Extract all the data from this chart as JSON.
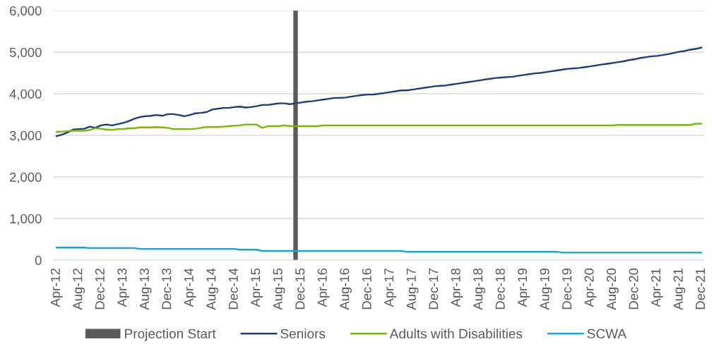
{
  "chart_data": {
    "type": "line",
    "categories": [
      "Apr-12",
      null,
      null,
      null,
      "Aug-12",
      null,
      null,
      null,
      "Dec-12",
      null,
      null,
      null,
      "Apr-13",
      null,
      null,
      null,
      "Aug-13",
      null,
      null,
      null,
      "Dec-13",
      null,
      null,
      null,
      "Apr-14",
      null,
      null,
      null,
      "Aug-14",
      null,
      null,
      null,
      "Dec-14",
      null,
      null,
      null,
      "Apr-15",
      null,
      null,
      null,
      "Aug-15",
      null,
      null,
      null,
      "Dec-15",
      null,
      null,
      null,
      "Apr-16",
      null,
      null,
      null,
      "Aug-16",
      null,
      null,
      null,
      "Dec-16",
      null,
      null,
      null,
      "Apr-17",
      null,
      null,
      null,
      "Aug-17",
      null,
      null,
      null,
      "Dec-17",
      null,
      null,
      null,
      "Apr-18",
      null,
      null,
      null,
      "Aug-18",
      null,
      null,
      null,
      "Dec-18",
      null,
      null,
      null,
      "Apr-19",
      null,
      null,
      null,
      "Aug-19",
      null,
      null,
      null,
      "Dec-19",
      null,
      null,
      null,
      "Apr-20",
      null,
      null,
      null,
      "Aug-20",
      null,
      null,
      null,
      "Dec-20",
      null,
      null,
      null,
      "Apr-21",
      null,
      null,
      null,
      "Aug-21",
      null,
      null,
      null,
      "Dec-21"
    ],
    "series": [
      {
        "name": "Projection Start",
        "type": "bar",
        "color": "#595959",
        "values": [
          null,
          null,
          null,
          null,
          null,
          null,
          null,
          null,
          null,
          null,
          null,
          null,
          null,
          null,
          null,
          null,
          null,
          null,
          null,
          null,
          null,
          null,
          null,
          null,
          null,
          null,
          null,
          null,
          null,
          null,
          null,
          null,
          null,
          null,
          null,
          null,
          null,
          null,
          null,
          null,
          null,
          null,
          null,
          6000,
          null,
          null,
          null,
          null,
          null,
          null,
          null,
          null,
          null,
          null,
          null,
          null,
          null,
          null,
          null,
          null,
          null,
          null,
          null,
          null,
          null,
          null,
          null,
          null,
          null,
          null,
          null,
          null,
          null,
          null,
          null,
          null,
          null,
          null,
          null,
          null,
          null,
          null,
          null,
          null,
          null,
          null,
          null,
          null,
          null,
          null,
          null,
          null,
          null,
          null,
          null,
          null,
          null,
          null,
          null,
          null,
          null,
          null,
          null,
          null,
          null,
          null,
          null,
          null,
          null,
          null,
          null,
          null,
          null,
          null,
          null,
          null,
          null
        ]
      },
      {
        "name": "Seniors",
        "color": "#1f3b7f",
        "values": [
          2980,
          3020,
          3070,
          3140,
          3150,
          3160,
          3210,
          3180,
          3240,
          3260,
          3240,
          3270,
          3300,
          3340,
          3400,
          3440,
          3460,
          3470,
          3490,
          3470,
          3510,
          3510,
          3490,
          3460,
          3490,
          3530,
          3540,
          3560,
          3620,
          3640,
          3660,
          3660,
          3680,
          3690,
          3670,
          3680,
          3700,
          3730,
          3730,
          3750,
          3770,
          3770,
          3750,
          3770,
          3790,
          3810,
          3820,
          3840,
          3860,
          3880,
          3900,
          3900,
          3910,
          3930,
          3950,
          3970,
          3980,
          3980,
          4000,
          4020,
          4040,
          4060,
          4080,
          4080,
          4100,
          4120,
          4140,
          4160,
          4180,
          4190,
          4200,
          4220,
          4240,
          4260,
          4280,
          4300,
          4320,
          4340,
          4360,
          4380,
          4390,
          4400,
          4410,
          4430,
          4450,
          4470,
          4490,
          4500,
          4520,
          4540,
          4560,
          4580,
          4600,
          4610,
          4620,
          4640,
          4660,
          4680,
          4700,
          4720,
          4740,
          4760,
          4780,
          4810,
          4830,
          4860,
          4880,
          4900,
          4910,
          4930,
          4950,
          4980,
          5010,
          5030,
          5060,
          5080,
          5110
        ]
      },
      {
        "name": "Adults with Disabilities",
        "color": "#7ab800",
        "values": [
          3080,
          3090,
          3100,
          3110,
          3110,
          3110,
          3130,
          3170,
          3160,
          3140,
          3130,
          3150,
          3150,
          3170,
          3170,
          3190,
          3190,
          3190,
          3200,
          3190,
          3180,
          3150,
          3150,
          3150,
          3150,
          3160,
          3180,
          3200,
          3200,
          3200,
          3210,
          3220,
          3230,
          3240,
          3260,
          3260,
          3260,
          3180,
          3220,
          3220,
          3220,
          3240,
          3220,
          3220,
          3220,
          3220,
          3220,
          3220,
          3240,
          3240,
          3240,
          3240,
          3240,
          3240,
          3240,
          3240,
          3240,
          3240,
          3240,
          3240,
          3240,
          3240,
          3240,
          3240,
          3240,
          3240,
          3240,
          3240,
          3240,
          3240,
          3240,
          3240,
          3240,
          3240,
          3240,
          3240,
          3240,
          3240,
          3240,
          3240,
          3240,
          3240,
          3240,
          3240,
          3240,
          3240,
          3240,
          3240,
          3240,
          3240,
          3240,
          3240,
          3240,
          3240,
          3240,
          3240,
          3240,
          3240,
          3240,
          3240,
          3240,
          3250,
          3250,
          3250,
          3250,
          3250,
          3250,
          3250,
          3250,
          3250,
          3250,
          3250,
          3250,
          3250,
          3250,
          3280,
          3280
        ]
      },
      {
        "name": "SCWA",
        "color": "#0ea5e0",
        "values": [
          300,
          300,
          300,
          300,
          300,
          300,
          290,
          290,
          290,
          290,
          290,
          290,
          290,
          290,
          290,
          270,
          270,
          270,
          270,
          270,
          270,
          270,
          270,
          270,
          270,
          270,
          270,
          270,
          270,
          270,
          270,
          270,
          270,
          250,
          250,
          250,
          250,
          220,
          220,
          220,
          220,
          220,
          220,
          220,
          220,
          220,
          220,
          220,
          220,
          220,
          220,
          220,
          220,
          220,
          220,
          220,
          220,
          220,
          220,
          220,
          220,
          220,
          220,
          200,
          200,
          200,
          200,
          200,
          200,
          200,
          200,
          200,
          200,
          200,
          200,
          200,
          200,
          200,
          200,
          200,
          200,
          200,
          200,
          200,
          200,
          200,
          200,
          200,
          200,
          200,
          200,
          180,
          180,
          180,
          180,
          180,
          180,
          180,
          180,
          180,
          180,
          180,
          180,
          180,
          180,
          180,
          180,
          180,
          180,
          180,
          180,
          180,
          180,
          180,
          180,
          180,
          180
        ]
      }
    ],
    "ylim": [
      0,
      6000
    ],
    "yticks": [
      0,
      {
        "value": 1000,
        "label": "1,000"
      },
      {
        "value": 2000,
        "label": "2,000"
      },
      {
        "value": 3000,
        "label": "3,000"
      },
      {
        "value": 4000,
        "label": "4,000"
      },
      {
        "value": 5000,
        "label": "5,000"
      },
      {
        "value": 6000,
        "label": "6,000"
      }
    ],
    "grid": "y",
    "legend": "bottom"
  }
}
